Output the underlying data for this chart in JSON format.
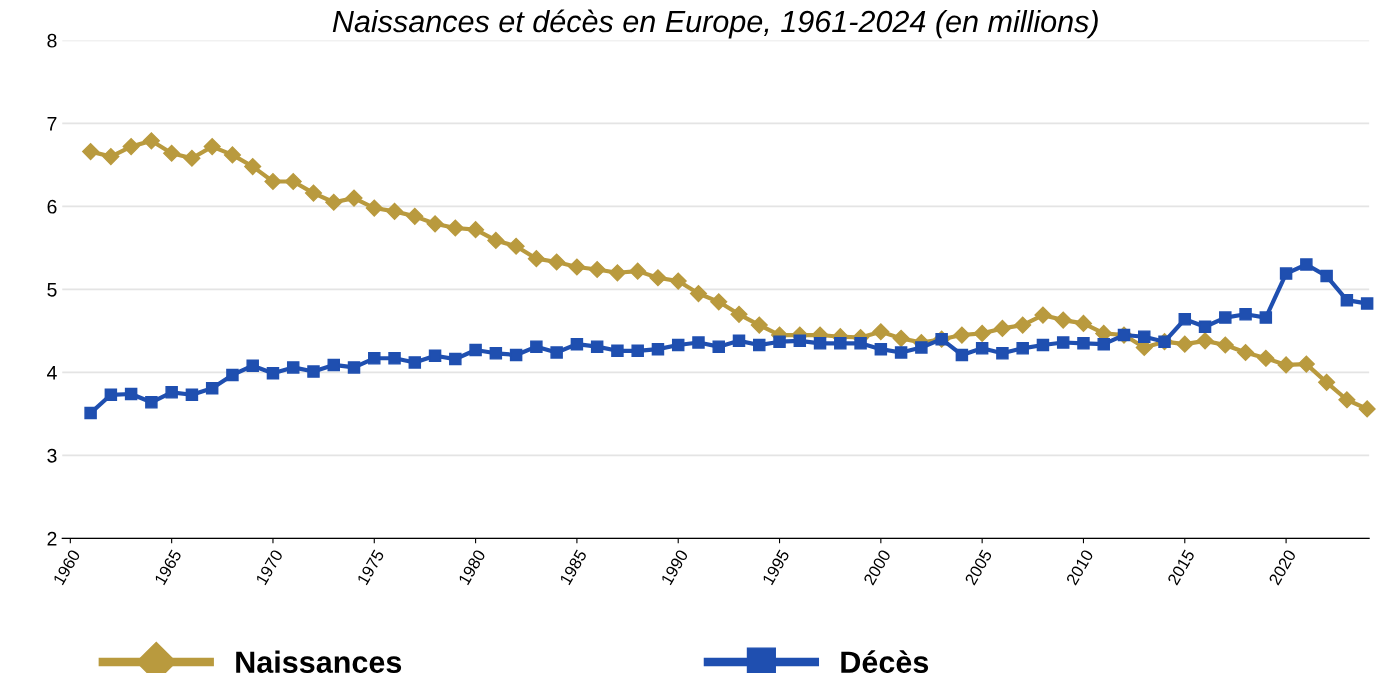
{
  "chart_data": {
    "type": "line",
    "title": "Naissances et décès en Europe, 1961-2024 (en millions)",
    "x": [
      1961,
      1962,
      1963,
      1964,
      1965,
      1966,
      1967,
      1968,
      1969,
      1970,
      1971,
      1972,
      1973,
      1974,
      1975,
      1976,
      1977,
      1978,
      1979,
      1980,
      1981,
      1982,
      1983,
      1984,
      1985,
      1986,
      1987,
      1988,
      1989,
      1990,
      1991,
      1992,
      1993,
      1994,
      1995,
      1996,
      1997,
      1998,
      1999,
      2000,
      2001,
      2002,
      2003,
      2004,
      2005,
      2006,
      2007,
      2008,
      2009,
      2010,
      2011,
      2012,
      2013,
      2014,
      2015,
      2016,
      2017,
      2018,
      2019,
      2020,
      2021,
      2022,
      2023,
      2024
    ],
    "series": [
      {
        "name": "Naissances",
        "color": "#b99a3e",
        "marker": "diamond",
        "values": [
          6.66,
          6.6,
          6.72,
          6.79,
          6.64,
          6.58,
          6.72,
          6.62,
          6.48,
          6.3,
          6.3,
          6.16,
          6.05,
          6.1,
          5.98,
          5.94,
          5.88,
          5.79,
          5.74,
          5.72,
          5.59,
          5.52,
          5.37,
          5.33,
          5.27,
          5.24,
          5.2,
          5.22,
          5.14,
          5.1,
          4.95,
          4.85,
          4.7,
          4.57,
          4.45,
          4.45,
          4.45,
          4.43,
          4.42,
          4.49,
          4.41,
          4.36,
          4.4,
          4.45,
          4.47,
          4.53,
          4.57,
          4.69,
          4.63,
          4.59,
          4.47,
          4.45,
          4.3,
          4.37,
          4.34,
          4.38,
          4.33,
          4.24,
          4.17,
          4.09,
          4.1,
          3.88,
          3.67,
          3.56
        ]
      },
      {
        "name": "Décès",
        "color": "#1f4fb0",
        "marker": "square",
        "values": [
          3.51,
          3.73,
          3.74,
          3.64,
          3.76,
          3.73,
          3.81,
          3.97,
          4.08,
          3.99,
          4.06,
          4.01,
          4.09,
          4.06,
          4.17,
          4.17,
          4.12,
          4.2,
          4.16,
          4.27,
          4.23,
          4.21,
          4.31,
          4.24,
          4.34,
          4.31,
          4.26,
          4.26,
          4.28,
          4.33,
          4.36,
          4.31,
          4.38,
          4.33,
          4.37,
          4.38,
          4.35,
          4.35,
          4.35,
          4.28,
          4.24,
          4.3,
          4.4,
          4.21,
          4.29,
          4.23,
          4.29,
          4.33,
          4.36,
          4.35,
          4.34,
          4.45,
          4.43,
          4.37,
          4.64,
          4.55,
          4.66,
          4.7,
          4.66,
          5.19,
          5.3,
          5.16,
          4.87,
          4.83
        ]
      }
    ],
    "xlim": [
      1959.6,
      2024.1
    ],
    "xticks": [
      1960,
      1965,
      1970,
      1975,
      1980,
      1985,
      1990,
      1995,
      2000,
      2005,
      2010,
      2015,
      2020
    ],
    "ylim": [
      2,
      8
    ],
    "yticks": [
      2,
      3,
      4,
      5,
      6,
      7,
      8
    ],
    "grid": "y",
    "legend": "bottom",
    "line_style": "solid"
  }
}
